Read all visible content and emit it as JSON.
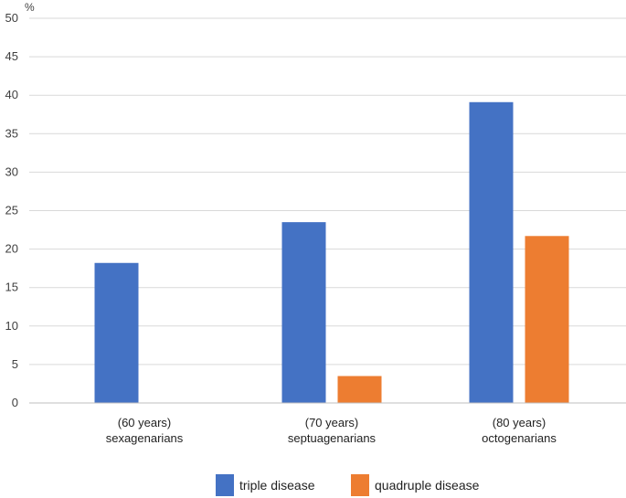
{
  "chart_data": {
    "type": "bar",
    "title": "",
    "xlabel": "",
    "ylabel": "%",
    "ylim": [
      0,
      50
    ],
    "yticks": [
      0,
      5,
      10,
      15,
      20,
      25,
      30,
      35,
      40,
      45,
      50
    ],
    "grid": true,
    "legend_position": "bottom",
    "categories": [
      {
        "line1": "(60 years)",
        "line2": "sexagenarians"
      },
      {
        "line1": "(70 years)",
        "line2": "septuagenarians"
      },
      {
        "line1": "(80 years)",
        "line2": "octogenarians"
      }
    ],
    "series": [
      {
        "name": "triple disease",
        "color": "#4472C4",
        "values": [
          18.2,
          23.5,
          39.1
        ]
      },
      {
        "name": "quadruple disease",
        "color": "#ED7D31",
        "values": [
          null,
          3.5,
          21.7
        ]
      }
    ]
  }
}
